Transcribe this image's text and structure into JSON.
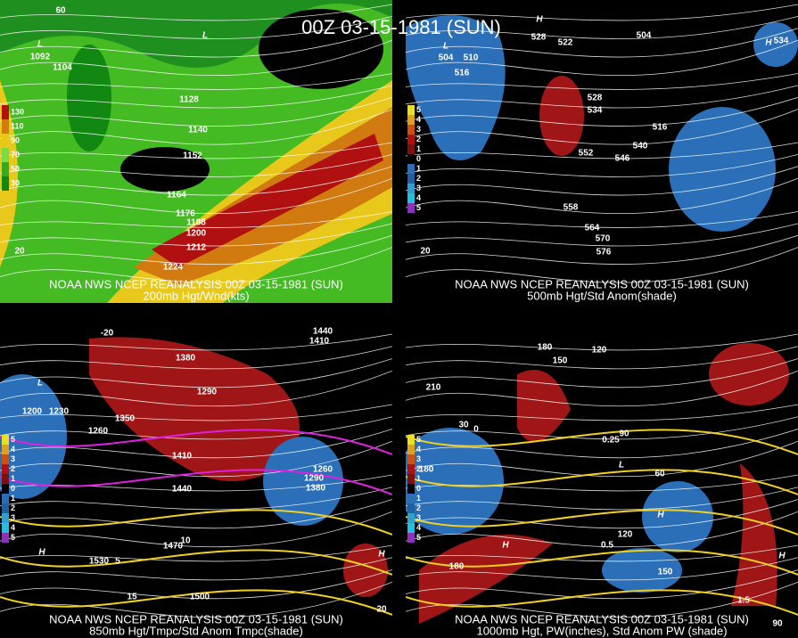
{
  "title": "00Z 03-15-1981 (SUN)",
  "panels": [
    {
      "caption": "NOAA NWS NCEP REANALYSIS 00Z 03-15-1981 (SUN)",
      "subcaption": "200mb Hgt/Wnd(kts)",
      "legend": [
        "130",
        "110",
        "90",
        "70",
        "50",
        "30"
      ],
      "labels": [
        "L",
        "1092",
        "1104",
        "L",
        "1128",
        "1140",
        "1152",
        "1164",
        "1176",
        "1188",
        "1200",
        "1212",
        "1224",
        "20",
        "60"
      ]
    },
    {
      "caption": "NOAA NWS NCEP REANALYSIS 00Z 03-15-1981 (SUN)",
      "subcaption": "500mb Hgt/Std Anom(shade)",
      "legend": [
        "5",
        "4",
        "3",
        "2",
        "1",
        "0",
        "1",
        "2",
        "3",
        "4",
        "5"
      ],
      "labels": [
        "L",
        "504",
        "510",
        "516",
        "H",
        "528",
        "522",
        "504",
        "528",
        "534",
        "552",
        "546",
        "540",
        "516",
        "558",
        "564",
        "570",
        "576",
        "20",
        "H",
        "534"
      ]
    },
    {
      "caption": "NOAA NWS NCEP REANALYSIS 00Z 03-15-1981 (SUN)",
      "subcaption": "850mb Hgt/Tmpc/Std Anom Tmpc(shade)",
      "legend": [
        "5",
        "4",
        "3",
        "2",
        "1",
        "0",
        "1",
        "2",
        "3",
        "4",
        "5"
      ],
      "labels": [
        "-20",
        "1380",
        "1410",
        "1440",
        "L",
        "1200",
        "1230",
        "1260",
        "1350",
        "1290",
        "1410",
        "1440",
        "1380",
        "1260",
        "1290",
        "H",
        "1530",
        "5",
        "10",
        "1470",
        "15",
        "1500",
        "H",
        "20"
      ]
    },
    {
      "caption": "NOAA NWS NCEP REANALYSIS 00Z 03-15-1981 (SUN)",
      "subcaption": "1000mb Hgt, PW(inches), Std Anom PW (shade)",
      "legend": [
        "5",
        "4",
        "3",
        "2",
        "1",
        "0",
        "1",
        "2",
        "3",
        "4",
        "5"
      ],
      "labels": [
        "180",
        "150",
        "120",
        "210",
        "0",
        "30",
        "90",
        "0.25",
        "L",
        "60",
        "180",
        "H",
        "120",
        "0.5",
        "150",
        "H",
        "1.5",
        "180",
        "H",
        "90"
      ]
    }
  ]
}
